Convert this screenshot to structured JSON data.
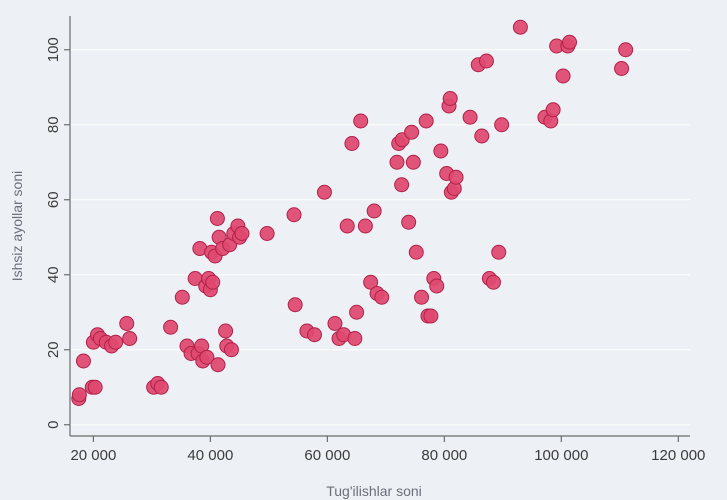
{
  "chart_data": {
    "type": "scatter",
    "title": "",
    "xlabel": "Tug'ilishlar soni",
    "ylabel": "Ishsiz ayollar soni",
    "xlim": [
      16000,
      122000
    ],
    "ylim": [
      -3,
      109
    ],
    "xticks": [
      20000,
      40000,
      60000,
      80000,
      100000,
      120000
    ],
    "xtick_labels": [
      "20 000",
      "40 000",
      "60 000",
      "80 000",
      "100 000",
      "120 000"
    ],
    "yticks": [
      0,
      20,
      40,
      60,
      80,
      100
    ],
    "ytick_labels": [
      "0",
      "20",
      "40",
      "60",
      "80",
      "100"
    ],
    "grid": "horizontal",
    "marker_color": "#e0486f",
    "points": [
      {
        "x": 17500,
        "y": 7
      },
      {
        "x": 17600,
        "y": 8
      },
      {
        "x": 18300,
        "y": 17
      },
      {
        "x": 19800,
        "y": 10
      },
      {
        "x": 20300,
        "y": 10
      },
      {
        "x": 20000,
        "y": 22
      },
      {
        "x": 20700,
        "y": 24
      },
      {
        "x": 21200,
        "y": 23
      },
      {
        "x": 22200,
        "y": 22
      },
      {
        "x": 23100,
        "y": 21
      },
      {
        "x": 23800,
        "y": 22
      },
      {
        "x": 25700,
        "y": 27
      },
      {
        "x": 26200,
        "y": 23
      },
      {
        "x": 30300,
        "y": 10
      },
      {
        "x": 31000,
        "y": 11
      },
      {
        "x": 31600,
        "y": 10
      },
      {
        "x": 33200,
        "y": 26
      },
      {
        "x": 35200,
        "y": 34
      },
      {
        "x": 36000,
        "y": 21
      },
      {
        "x": 36700,
        "y": 19
      },
      {
        "x": 37400,
        "y": 39
      },
      {
        "x": 37900,
        "y": 19
      },
      {
        "x": 38200,
        "y": 47
      },
      {
        "x": 38500,
        "y": 21
      },
      {
        "x": 38700,
        "y": 17
      },
      {
        "x": 39200,
        "y": 37
      },
      {
        "x": 39400,
        "y": 18
      },
      {
        "x": 39700,
        "y": 39
      },
      {
        "x": 40000,
        "y": 36
      },
      {
        "x": 40200,
        "y": 46
      },
      {
        "x": 40400,
        "y": 38
      },
      {
        "x": 40800,
        "y": 45
      },
      {
        "x": 41200,
        "y": 55
      },
      {
        "x": 41300,
        "y": 16
      },
      {
        "x": 41500,
        "y": 50
      },
      {
        "x": 42100,
        "y": 47
      },
      {
        "x": 42600,
        "y": 25
      },
      {
        "x": 42800,
        "y": 21
      },
      {
        "x": 43300,
        "y": 48
      },
      {
        "x": 43600,
        "y": 20
      },
      {
        "x": 44000,
        "y": 51
      },
      {
        "x": 44700,
        "y": 53
      },
      {
        "x": 45000,
        "y": 50
      },
      {
        "x": 45400,
        "y": 51
      },
      {
        "x": 49700,
        "y": 51
      },
      {
        "x": 54300,
        "y": 56
      },
      {
        "x": 54500,
        "y": 32
      },
      {
        "x": 56500,
        "y": 25
      },
      {
        "x": 57800,
        "y": 24
      },
      {
        "x": 59500,
        "y": 62
      },
      {
        "x": 61300,
        "y": 27
      },
      {
        "x": 62000,
        "y": 23
      },
      {
        "x": 62800,
        "y": 24
      },
      {
        "x": 63400,
        "y": 53
      },
      {
        "x": 64200,
        "y": 75
      },
      {
        "x": 64700,
        "y": 23
      },
      {
        "x": 65000,
        "y": 30
      },
      {
        "x": 65700,
        "y": 81
      },
      {
        "x": 66500,
        "y": 53
      },
      {
        "x": 67400,
        "y": 38
      },
      {
        "x": 68000,
        "y": 57
      },
      {
        "x": 68500,
        "y": 35
      },
      {
        "x": 69300,
        "y": 34
      },
      {
        "x": 71900,
        "y": 70
      },
      {
        "x": 72200,
        "y": 75
      },
      {
        "x": 72700,
        "y": 64
      },
      {
        "x": 72800,
        "y": 76
      },
      {
        "x": 73900,
        "y": 54
      },
      {
        "x": 74400,
        "y": 78
      },
      {
        "x": 74700,
        "y": 70
      },
      {
        "x": 75200,
        "y": 46
      },
      {
        "x": 76100,
        "y": 34
      },
      {
        "x": 76900,
        "y": 81
      },
      {
        "x": 77200,
        "y": 29
      },
      {
        "x": 77700,
        "y": 29
      },
      {
        "x": 78200,
        "y": 39
      },
      {
        "x": 78700,
        "y": 37
      },
      {
        "x": 79400,
        "y": 73
      },
      {
        "x": 80400,
        "y": 67
      },
      {
        "x": 80800,
        "y": 85
      },
      {
        "x": 81000,
        "y": 87
      },
      {
        "x": 81200,
        "y": 62
      },
      {
        "x": 81700,
        "y": 63
      },
      {
        "x": 82000,
        "y": 66
      },
      {
        "x": 84400,
        "y": 82
      },
      {
        "x": 85800,
        "y": 96
      },
      {
        "x": 86400,
        "y": 77
      },
      {
        "x": 87200,
        "y": 97
      },
      {
        "x": 87700,
        "y": 39
      },
      {
        "x": 88400,
        "y": 38
      },
      {
        "x": 89300,
        "y": 46
      },
      {
        "x": 89800,
        "y": 80
      },
      {
        "x": 93000,
        "y": 106
      },
      {
        "x": 97200,
        "y": 82
      },
      {
        "x": 98200,
        "y": 81
      },
      {
        "x": 98600,
        "y": 84
      },
      {
        "x": 99200,
        "y": 101
      },
      {
        "x": 100300,
        "y": 93
      },
      {
        "x": 101100,
        "y": 101
      },
      {
        "x": 101400,
        "y": 102
      },
      {
        "x": 110300,
        "y": 95
      },
      {
        "x": 111000,
        "y": 100
      }
    ]
  }
}
